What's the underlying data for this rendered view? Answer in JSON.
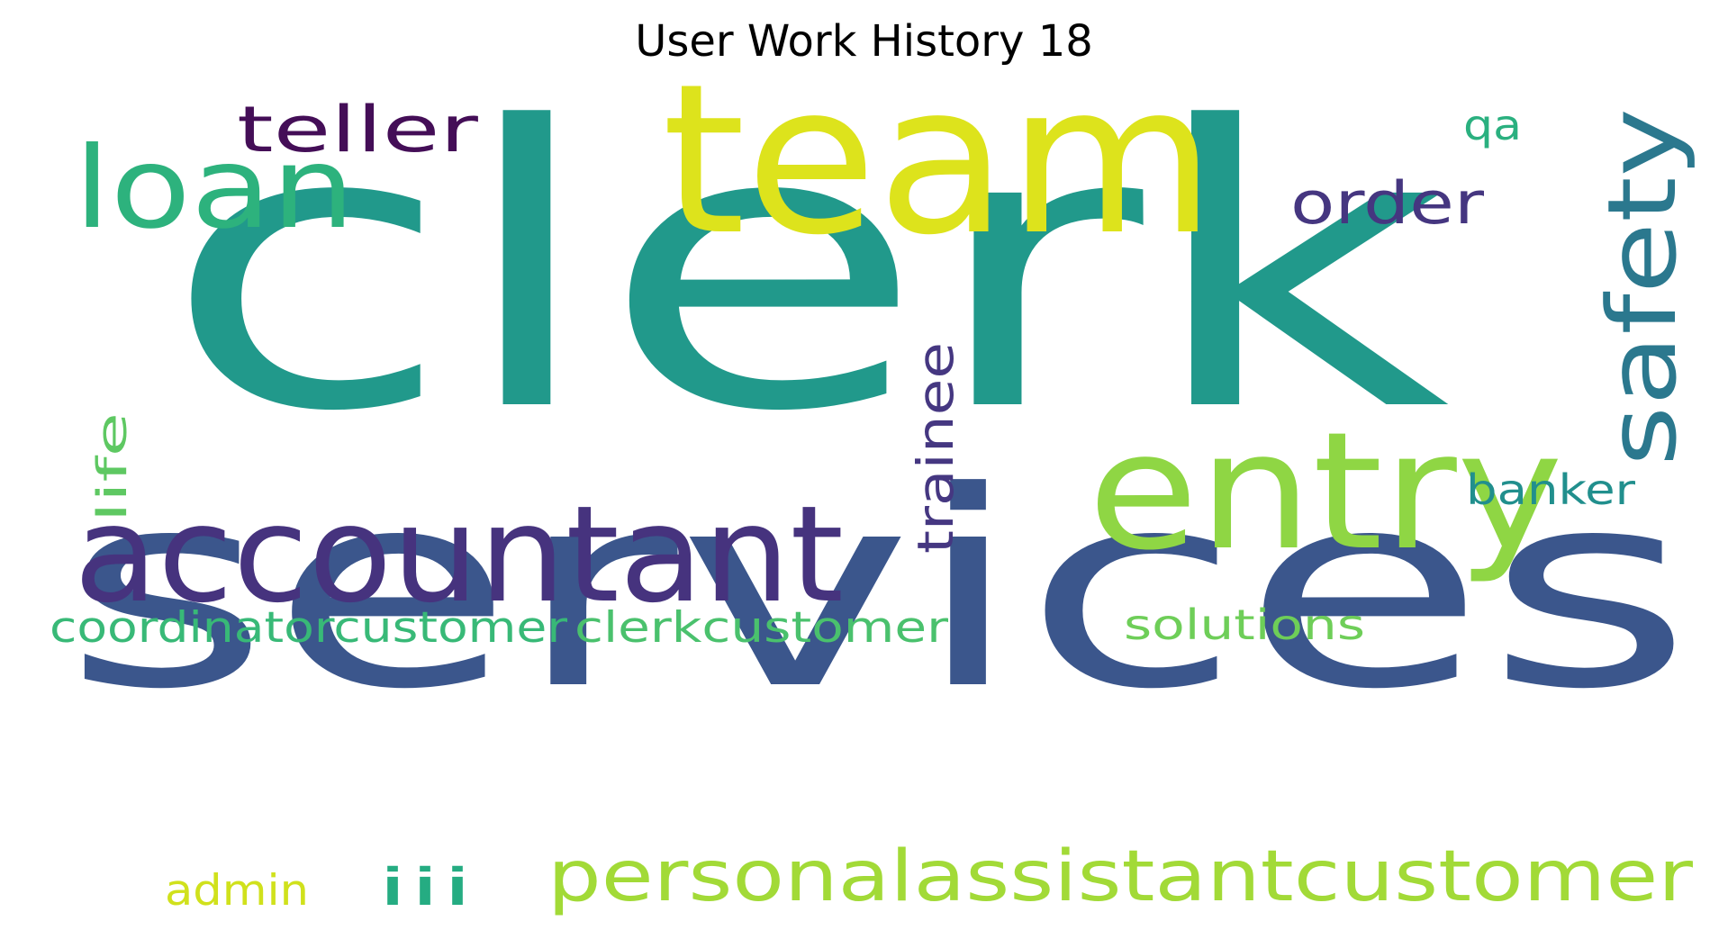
{
  "title": "User Work History 18",
  "words": [
    {
      "text": "clerk",
      "color": "#21998b"
    },
    {
      "text": "services",
      "color": "#3b568c"
    },
    {
      "text": "team",
      "color": "#dde31c"
    },
    {
      "text": "accountant",
      "color": "#46337e"
    },
    {
      "text": "entry",
      "color": "#8fd644"
    },
    {
      "text": "loan",
      "color": "#2db27d"
    },
    {
      "text": "safety",
      "color": "#2b788e"
    },
    {
      "text": "teller",
      "color": "#440e57"
    },
    {
      "text": "order",
      "color": "#453680"
    },
    {
      "text": "qa",
      "color": "#2ab07f"
    },
    {
      "text": "trainee",
      "color": "#453781"
    },
    {
      "text": "life",
      "color": "#5ec862"
    },
    {
      "text": "banker",
      "color": "#218f8d"
    },
    {
      "text": "coordinatorcustomer",
      "color": "#38b977"
    },
    {
      "text": "clerkcustomer",
      "color": "#4ac16d"
    },
    {
      "text": "solutions",
      "color": "#6ece58"
    },
    {
      "text": "personalassistantcustomer",
      "color": "#a2da37"
    },
    {
      "text": "iii",
      "color": "#25ac82"
    },
    {
      "text": "admin",
      "color": "#d0e11c"
    }
  ]
}
